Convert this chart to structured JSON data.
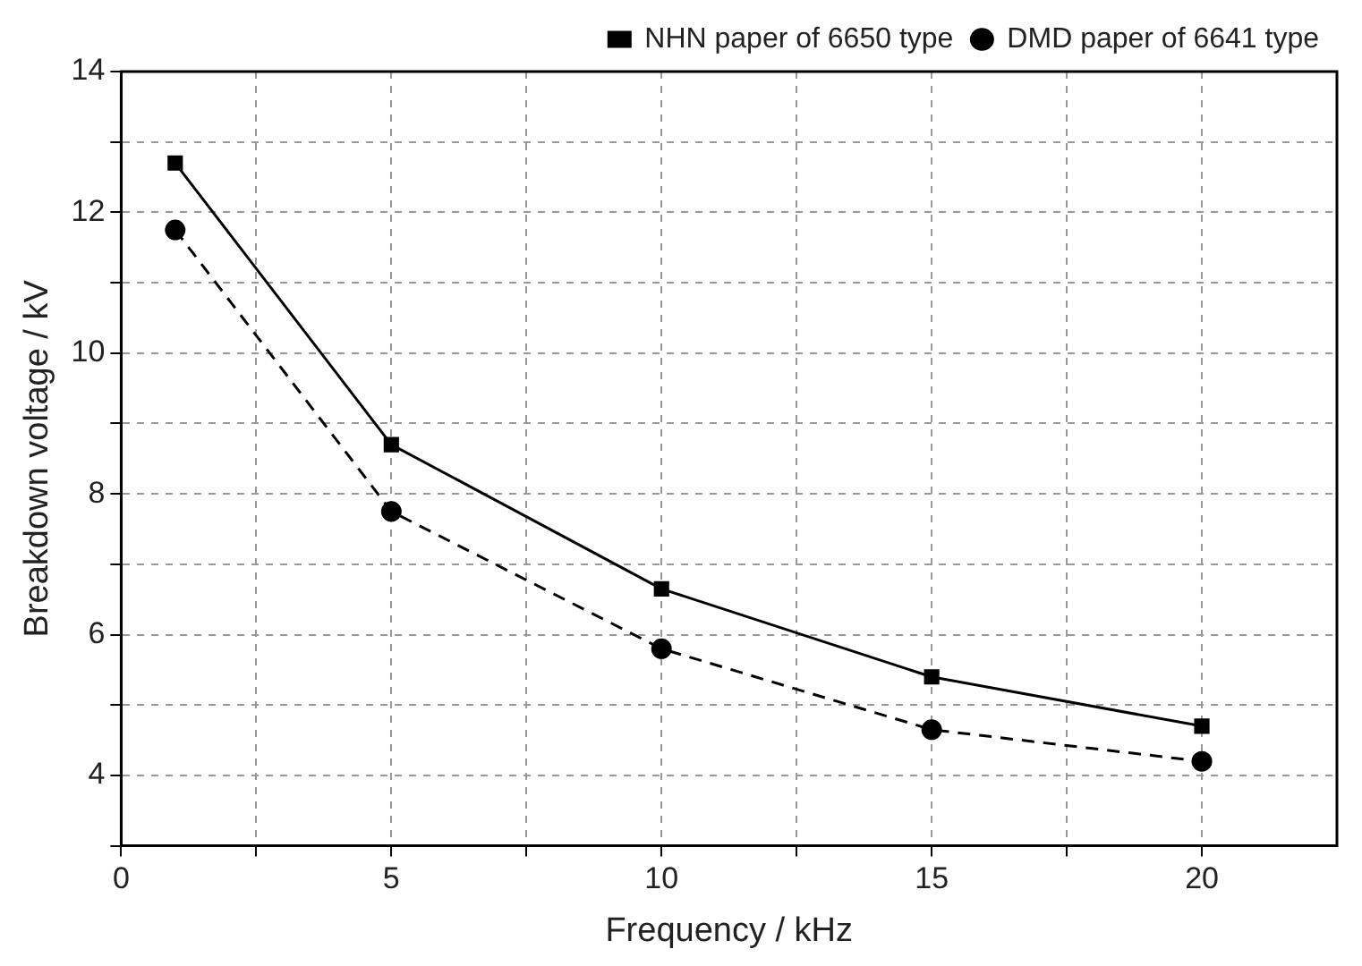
{
  "chart_data": {
    "type": "line",
    "xlabel": "Frequency / kHz",
    "ylabel": "Breakdown voltage / kV",
    "x": [
      1,
      5,
      10,
      15,
      20
    ],
    "series": [
      {
        "name": "NHN paper of 6650 type",
        "color": "#000000",
        "values": [
          12.7,
          8.7,
          6.65,
          5.4,
          4.7
        ],
        "marker": "square",
        "line_style": "solid"
      },
      {
        "name": "DMD paper of 6641 type",
        "color": "#000000",
        "values": [
          11.75,
          7.75,
          5.8,
          4.65,
          4.2
        ],
        "marker": "circle",
        "line_style": "dashed"
      }
    ],
    "xlim": [
      0,
      22.5
    ],
    "xticks": [
      0,
      {
        "value": 2.5,
        "label": null
      },
      5,
      {
        "value": 7.5,
        "label": null
      },
      10,
      {
        "value": 12.5,
        "label": null
      },
      15,
      {
        "value": 17.5,
        "label": null
      },
      20
    ],
    "ylim": [
      3,
      14
    ],
    "yticks": [
      {
        "value": 3,
        "label": null
      },
      4,
      {
        "value": 5,
        "label": null
      },
      6,
      {
        "value": 7,
        "label": null
      },
      8,
      {
        "value": 9,
        "label": null
      },
      10,
      {
        "value": 11,
        "label": null
      },
      12,
      {
        "value": 13,
        "label": null
      },
      14
    ],
    "grid": true,
    "legend": "top right"
  }
}
